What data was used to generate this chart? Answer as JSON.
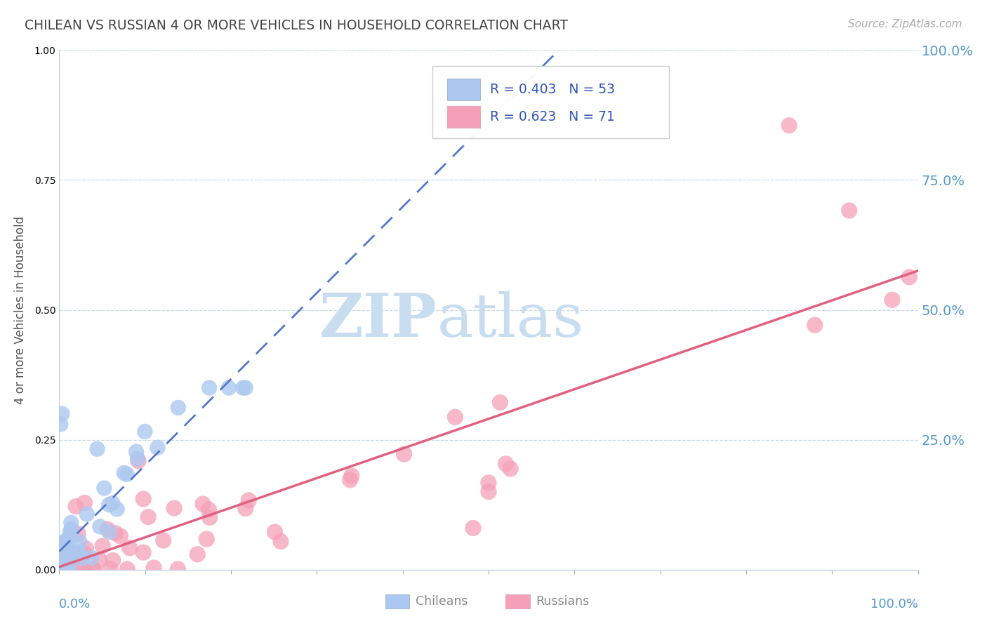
{
  "title": "CHILEAN VS RUSSIAN 4 OR MORE VEHICLES IN HOUSEHOLD CORRELATION CHART",
  "source_text": "Source: ZipAtlas.com",
  "ylabel": "4 or more Vehicles in Household",
  "xlim": [
    0.0,
    1.0
  ],
  "ylim": [
    0.0,
    1.0
  ],
  "yticks": [
    0.0,
    0.25,
    0.5,
    0.75,
    1.0
  ],
  "ytick_labels": [
    "",
    "25.0%",
    "50.0%",
    "75.0%",
    "100.0%"
  ],
  "chilean_R": 0.403,
  "chilean_N": 53,
  "russian_R": 0.623,
  "russian_N": 71,
  "chilean_color": "#adc8f0",
  "russian_color": "#f5a0b8",
  "chilean_line_color": "#5577cc",
  "russian_line_color": "#e06080",
  "background_color": "#ffffff",
  "grid_color": "#c8d8e8",
  "tick_label_color": "#5599cc",
  "watermark_zip_color": "#c8ddf0",
  "watermark_atlas_color": "#c8ddf0",
  "title_color": "#444444",
  "source_color": "#aaaaaa",
  "ylabel_color": "#555555",
  "legend_text_color": "#3355bb",
  "legend_border_color": "#cccccc",
  "bottom_legend_label_color": "#888888"
}
